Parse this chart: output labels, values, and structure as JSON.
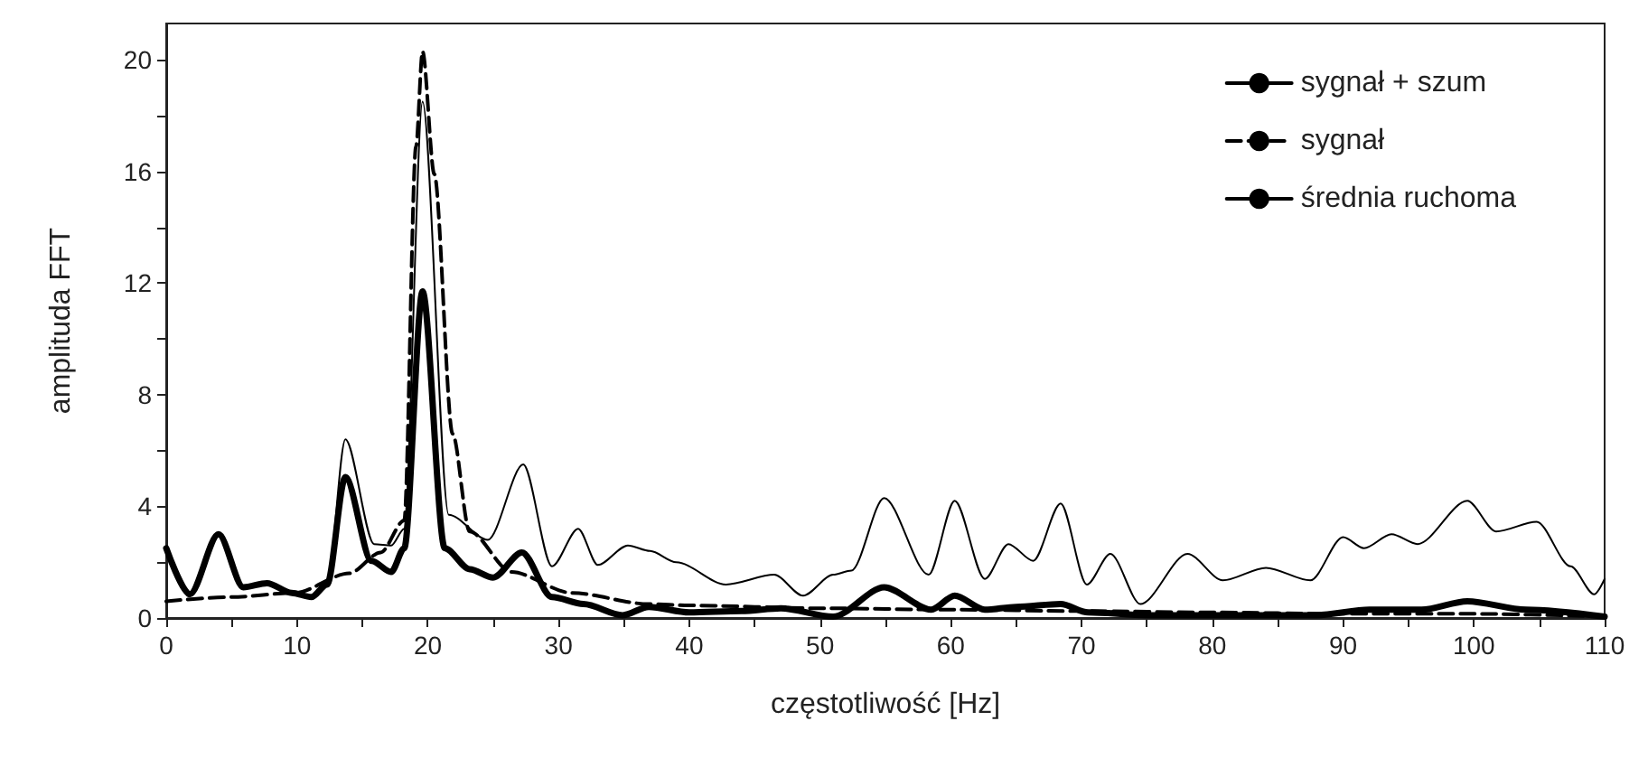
{
  "chart_data": {
    "type": "line",
    "xlabel": "częstotliwość [Hz]",
    "ylabel": "amplituda FFT",
    "xlim": [
      0,
      110
    ],
    "ylim": [
      0,
      21.3
    ],
    "xticks": [
      0,
      {
        "value": 5,
        "label": null
      },
      10,
      {
        "value": 15,
        "label": null
      },
      20,
      {
        "value": 25,
        "label": null
      },
      30,
      {
        "value": 35,
        "label": null
      },
      40,
      {
        "value": 45,
        "label": null
      },
      50,
      {
        "value": 55,
        "label": null
      },
      60,
      {
        "value": 65,
        "label": null
      },
      70,
      {
        "value": 75,
        "label": null
      },
      80,
      {
        "value": 85,
        "label": null
      },
      90,
      {
        "value": 95,
        "label": null
      },
      100,
      {
        "value": 105,
        "label": null
      },
      110
    ],
    "yticks": [
      0,
      {
        "value": 2,
        "label": null
      },
      4,
      {
        "value": 6,
        "label": null
      },
      8,
      {
        "value": 10,
        "label": null
      },
      12,
      {
        "value": 14,
        "label": null
      },
      16,
      {
        "value": 18,
        "label": null
      },
      20
    ],
    "grid": false,
    "legend": "top right",
    "marker": "none",
    "series": [
      {
        "name": "sygnał + szum",
        "color": "#000000",
        "line_style": "solid",
        "x": [
          0,
          1.8,
          4,
          5.9,
          7.7,
          9.6,
          11.1,
          12.3,
          13.7,
          15.9,
          17.2,
          18.2,
          19.6,
          21.6,
          24.6,
          27.3,
          29.5,
          31.5,
          33,
          35.3,
          37,
          39,
          42.8,
          46.5,
          48.7,
          51,
          52.4,
          54.9,
          58.3,
          60.3,
          62.6,
          64.4,
          66.3,
          68.4,
          70.4,
          72.2,
          74.5,
          78.1,
          80.8,
          84.1,
          87.5,
          90,
          91.6,
          93.7,
          95.7,
          99.5,
          101.7,
          104.8,
          107.4,
          109.2,
          110
        ],
        "values": [
          2.5,
          0.85,
          3.0,
          1.1,
          1.25,
          0.9,
          0.75,
          1.2,
          6.4,
          2.65,
          2.6,
          3.2,
          18.5,
          3.7,
          2.8,
          5.5,
          1.85,
          3.2,
          1.9,
          2.6,
          2.4,
          2.0,
          1.2,
          1.55,
          0.8,
          1.55,
          1.7,
          4.3,
          1.55,
          4.2,
          1.4,
          2.65,
          2.05,
          4.1,
          1.2,
          2.3,
          0.5,
          2.3,
          1.35,
          1.8,
          1.35,
          2.9,
          2.5,
          3.0,
          2.65,
          4.2,
          3.1,
          3.45,
          1.85,
          0.85,
          1.4
        ]
      },
      {
        "name": "sygnał",
        "color": "#000000",
        "line_style": "dashed",
        "x": [
          0,
          5,
          9.8,
          14,
          16.4,
          18.2,
          19.1,
          19.6,
          20.5,
          21.9,
          23.2,
          26.4,
          31,
          36.9,
          40,
          50,
          60,
          70,
          80,
          90,
          100,
          110
        ],
        "values": [
          0.6,
          0.75,
          0.9,
          1.6,
          2.35,
          3.5,
          16.9,
          20.3,
          15.9,
          6.6,
          3.1,
          1.65,
          0.9,
          0.5,
          0.45,
          0.35,
          0.3,
          0.25,
          0.2,
          0.15,
          0.15,
          0.05
        ]
      },
      {
        "name": "średnia ruchoma",
        "color": "#000000",
        "line_style": "solid",
        "x": [
          0,
          1.8,
          4,
          5.9,
          7.7,
          9.6,
          11.1,
          12.3,
          13.7,
          15.7,
          17.2,
          18.2,
          19.6,
          21.3,
          23.2,
          25,
          27.2,
          29.5,
          31.9,
          34.9,
          36.9,
          40,
          44,
          47,
          51,
          54.9,
          58.5,
          60.3,
          62.6,
          65,
          68.4,
          70.5,
          75,
          80,
          88,
          92,
          96,
          99.5,
          104,
          110
        ],
        "values": [
          2.5,
          0.85,
          3.0,
          1.1,
          1.25,
          0.9,
          0.75,
          1.2,
          5.05,
          2.05,
          1.65,
          2.5,
          11.7,
          2.5,
          1.75,
          1.45,
          2.35,
          0.75,
          0.5,
          0.1,
          0.4,
          0.2,
          0.25,
          0.35,
          0.05,
          1.1,
          0.3,
          0.8,
          0.3,
          0.4,
          0.5,
          0.2,
          0.1,
          0.1,
          0.1,
          0.3,
          0.3,
          0.6,
          0.3,
          0.05
        ]
      }
    ]
  }
}
